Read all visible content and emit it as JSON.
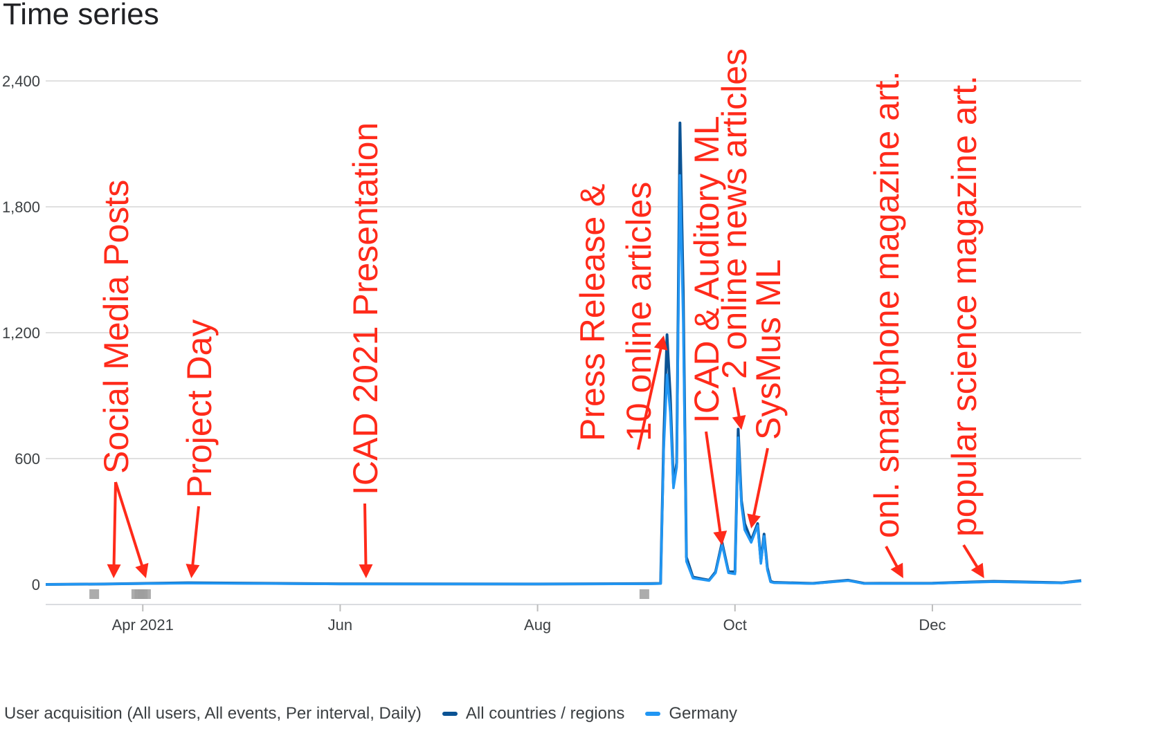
{
  "chart_data": {
    "type": "line",
    "title": "Time series",
    "y_ticks": [
      "0",
      "600",
      "1,200",
      "1,800",
      "2,400"
    ],
    "ylim": [
      0,
      2400
    ],
    "x_ticks": [
      {
        "date": "2021-04-01",
        "label": "Apr 2021"
      },
      {
        "date": "2021-06-01",
        "label": "Jun"
      },
      {
        "date": "2021-08-01",
        "label": "Aug"
      },
      {
        "date": "2021-10-01",
        "label": "Oct"
      },
      {
        "date": "2021-12-01",
        "label": "Dec"
      }
    ],
    "xlim": [
      "2021-03-02",
      "2022-01-16"
    ],
    "grid": true,
    "legend_position": "bottom",
    "legend_caption": "User acquisition (All users, All events, Per interval, Daily)",
    "series": [
      {
        "name": "All countries / regions",
        "color": "#0b5394",
        "points": [
          [
            "2021-03-02",
            0
          ],
          [
            "2021-03-20",
            2
          ],
          [
            "2021-04-15",
            8
          ],
          [
            "2021-06-01",
            3
          ],
          [
            "2021-08-01",
            2
          ],
          [
            "2021-09-05",
            4
          ],
          [
            "2021-09-08",
            5
          ],
          [
            "2021-09-09",
            700
          ],
          [
            "2021-09-10",
            1190
          ],
          [
            "2021-09-11",
            900
          ],
          [
            "2021-09-12",
            480
          ],
          [
            "2021-09-13",
            580
          ],
          [
            "2021-09-14",
            2200
          ],
          [
            "2021-09-15",
            1400
          ],
          [
            "2021-09-16",
            130
          ],
          [
            "2021-09-18",
            35
          ],
          [
            "2021-09-23",
            20
          ],
          [
            "2021-09-25",
            60
          ],
          [
            "2021-09-27",
            200
          ],
          [
            "2021-09-29",
            60
          ],
          [
            "2021-10-01",
            60
          ],
          [
            "2021-10-02",
            740
          ],
          [
            "2021-10-03",
            400
          ],
          [
            "2021-10-04",
            290
          ],
          [
            "2021-10-06",
            210
          ],
          [
            "2021-10-08",
            290
          ],
          [
            "2021-10-09",
            110
          ],
          [
            "2021-10-10",
            240
          ],
          [
            "2021-10-11",
            80
          ],
          [
            "2021-10-12",
            15
          ],
          [
            "2021-10-13",
            10
          ],
          [
            "2021-10-25",
            5
          ],
          [
            "2021-11-05",
            20
          ],
          [
            "2021-11-10",
            5
          ],
          [
            "2021-12-01",
            6
          ],
          [
            "2021-12-20",
            15
          ],
          [
            "2022-01-10",
            8
          ],
          [
            "2022-01-16",
            18
          ]
        ]
      },
      {
        "name": "Germany",
        "color": "#2196f3",
        "points": [
          [
            "2021-03-02",
            0
          ],
          [
            "2021-03-20",
            2
          ],
          [
            "2021-04-15",
            6
          ],
          [
            "2021-06-01",
            2
          ],
          [
            "2021-08-01",
            2
          ],
          [
            "2021-09-05",
            3
          ],
          [
            "2021-09-08",
            4
          ],
          [
            "2021-09-09",
            650
          ],
          [
            "2021-09-10",
            1000
          ],
          [
            "2021-09-11",
            820
          ],
          [
            "2021-09-12",
            460
          ],
          [
            "2021-09-13",
            560
          ],
          [
            "2021-09-14",
            1950
          ],
          [
            "2021-09-15",
            1250
          ],
          [
            "2021-09-16",
            110
          ],
          [
            "2021-09-18",
            30
          ],
          [
            "2021-09-23",
            18
          ],
          [
            "2021-09-25",
            55
          ],
          [
            "2021-09-27",
            190
          ],
          [
            "2021-09-29",
            55
          ],
          [
            "2021-10-01",
            50
          ],
          [
            "2021-10-02",
            700
          ],
          [
            "2021-10-03",
            380
          ],
          [
            "2021-10-04",
            260
          ],
          [
            "2021-10-06",
            200
          ],
          [
            "2021-10-08",
            280
          ],
          [
            "2021-10-09",
            100
          ],
          [
            "2021-10-10",
            230
          ],
          [
            "2021-10-11",
            70
          ],
          [
            "2021-10-12",
            12
          ],
          [
            "2021-10-13",
            8
          ],
          [
            "2021-10-25",
            4
          ],
          [
            "2021-11-05",
            18
          ],
          [
            "2021-11-10",
            4
          ],
          [
            "2021-12-01",
            5
          ],
          [
            "2021-12-20",
            13
          ],
          [
            "2022-01-10",
            7
          ],
          [
            "2022-01-16",
            16
          ]
        ]
      }
    ],
    "annotations": [
      {
        "text": "Social Media Posts",
        "date": "2021-03-26",
        "arrow_targets": [
          [
            "2021-03-23",
            0
          ],
          [
            "2021-04-02",
            0
          ]
        ]
      },
      {
        "text": "Project Day",
        "date": "2021-04-16",
        "arrow_targets": [
          [
            "2021-04-16",
            0
          ]
        ]
      },
      {
        "text": "ICAD 2021 Presentation",
        "date": "2021-06-09",
        "arrow_targets": [
          [
            "2021-06-09",
            0
          ]
        ]
      },
      {
        "text": "Press Release &",
        "date": "2021-08-31",
        "arrow_targets": []
      },
      {
        "text": "10 online articles",
        "date": "2021-09-05",
        "arrow_targets": [
          [
            "2021-09-09",
            1200
          ]
        ]
      },
      {
        "text": "ICAD & Auditory ML",
        "date": "2021-09-23",
        "arrow_targets": [
          [
            "2021-09-27",
            200
          ]
        ]
      },
      {
        "text": "2 online news articles",
        "date": "2021-10-04",
        "arrow_targets": [
          [
            "2021-10-03",
            750
          ]
        ]
      },
      {
        "text": "SysMus ML",
        "date": "2021-10-10",
        "arrow_targets": [
          [
            "2021-10-06",
            280
          ]
        ]
      },
      {
        "text": "onl. smartphone magazine art.",
        "date": "2021-11-22",
        "arrow_targets": [
          [
            "2021-11-22",
            0
          ]
        ]
      },
      {
        "text": "popular science magazine art.",
        "date": "2021-12-17",
        "arrow_targets": [
          [
            "2021-12-17",
            0
          ]
        ]
      }
    ],
    "event_markers": [
      [
        "2021-03-17"
      ],
      [
        "2021-03-30"
      ],
      [
        "2021-03-31"
      ],
      [
        "2021-04-01"
      ],
      [
        "2021-04-02"
      ],
      [
        "2021-09-03"
      ]
    ]
  }
}
